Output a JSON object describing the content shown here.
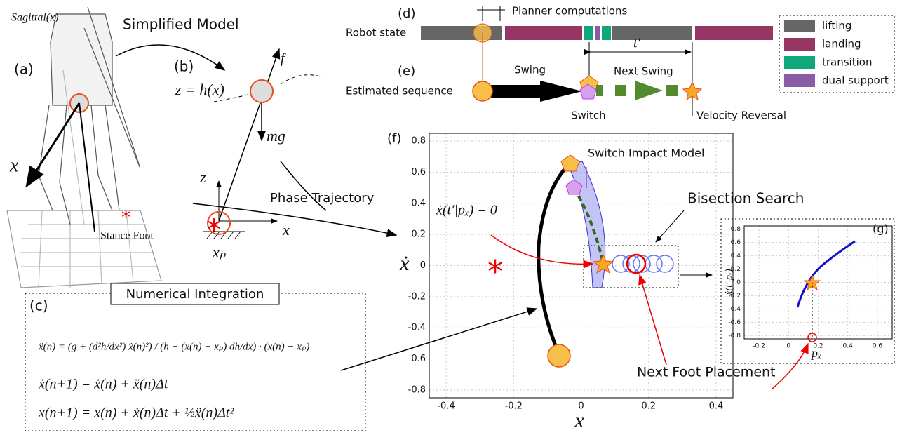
{
  "panels": {
    "a": "(a)",
    "b": "(b)",
    "c": "(c)",
    "d": "(d)",
    "e": "(e)",
    "f": "(f)",
    "g": "(g)"
  },
  "robot": {
    "sagittal": "Sagittal(x)",
    "x_axis": "x",
    "stance_foot": "Stance Foot"
  },
  "simplified_model": "Simplified Model",
  "model": {
    "equation": "z = h(x)",
    "force": "f",
    "gravity": "mg",
    "z_axis": "z",
    "x_axis": "x",
    "foot": "xₚ"
  },
  "integration": {
    "title": "Numerical Integration",
    "equations": [
      "ẍ(n) = (g + (d²h/dx²) ẋ(n)²) / (h − (x(n) − xₚ) dh/dx) · (x(n) − xₚ)",
      "ẋ(n+1) = ẋ(n) + ẍ(n)Δt",
      "x(n+1) = x(n) + ẋ(n)Δt + ½ẍ(n)Δt²"
    ]
  },
  "timeline": {
    "planner": "Planner computations",
    "robot_state": "Robot state",
    "estimated": "Estimated sequence",
    "swing": "Swing",
    "next_swing": "Next Swing",
    "switch": "Switch",
    "velocity_reversal": "Velocity Reversal",
    "t_prime": "t′"
  },
  "legend": [
    {
      "label": "lifting",
      "color": "#666666"
    },
    {
      "label": "landing",
      "color": "#953563"
    },
    {
      "label": "transition",
      "color": "#10a77b"
    },
    {
      "label": "dual support",
      "color": "#8a5ca6"
    }
  ],
  "phase_trajectory": "Phase Trajectory",
  "phase_plot": {
    "xlabel": "x",
    "ylabel": "ẋ",
    "xlim": [
      -0.45,
      0.45
    ],
    "ylim": [
      -0.85,
      0.85
    ],
    "xticks": [
      -0.4,
      -0.2,
      0,
      0.2,
      0.4
    ],
    "yticks": [
      -0.8,
      -0.6,
      -0.4,
      -0.2,
      0,
      0.2,
      0.4,
      0.6,
      0.8
    ],
    "annotations": {
      "switch_impact": "Switch Impact Model",
      "zero_velocity": "ẋ(t′|pₓ) = 0",
      "bisection": "Bisection Search",
      "next_foot": "Next Foot Placement"
    }
  },
  "inset": {
    "xlabel": "pₓ",
    "ylabel": "ẋ(t′|pₓ)",
    "xlim": [
      -0.3,
      0.7
    ],
    "ylim": [
      -0.85,
      0.85
    ],
    "xticks": [
      -0.2,
      0,
      0.2,
      0.4,
      0.6
    ],
    "yticks": [
      -0.8,
      -0.6,
      -0.4,
      -0.2,
      0,
      0.2,
      0.4,
      0.6,
      0.8
    ]
  }
}
